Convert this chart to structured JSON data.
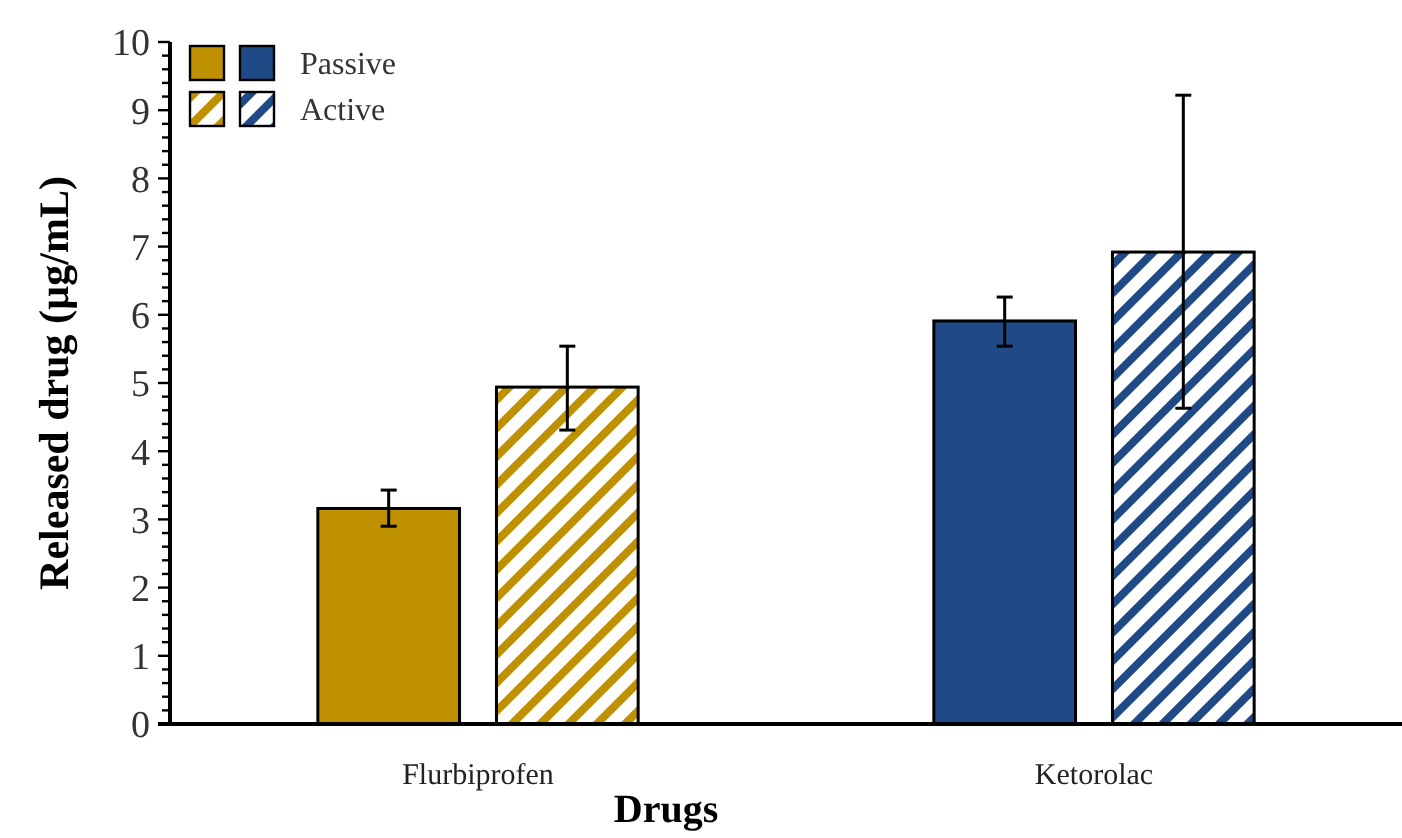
{
  "chart_data": {
    "type": "bar",
    "xlabel": "Drugs",
    "ylabel": "Released drug (µg/mL)",
    "categories": [
      "Flurbiprofen",
      "Ketorolac"
    ],
    "series": [
      {
        "name": "Passive",
        "colors": [
          "#bf9000",
          "#1f4a86"
        ],
        "values": [
          3.16,
          5.91
        ],
        "errors": [
          [
            2.9,
            3.43
          ],
          [
            5.54,
            6.26
          ]
        ]
      },
      {
        "name": "Active",
        "colors": [
          "#bf9000",
          "#1f4a86"
        ],
        "values": [
          4.94,
          6.92
        ],
        "errors": [
          [
            4.31,
            5.54
          ],
          [
            4.63,
            9.22
          ]
        ]
      }
    ],
    "ylim": [
      0,
      10
    ],
    "yticks": [
      0,
      {
        "value": 0.2,
        "label": null
      },
      {
        "value": 0.4,
        "label": null
      },
      {
        "value": 0.6,
        "label": null
      },
      {
        "value": 0.8,
        "label": null
      },
      1,
      {
        "value": 1.2,
        "label": null
      },
      {
        "value": 1.4,
        "label": null
      },
      {
        "value": 1.6,
        "label": null
      },
      {
        "value": 1.8,
        "label": null
      },
      2,
      {
        "value": 2.2,
        "label": null
      },
      {
        "value": 2.4,
        "label": null
      },
      {
        "value": 2.6,
        "label": null
      },
      {
        "value": 2.8,
        "label": null
      },
      3,
      {
        "value": 3.2,
        "label": null
      },
      {
        "value": 3.4,
        "label": null
      },
      {
        "value": 3.6,
        "label": null
      },
      {
        "value": 3.8,
        "label": null
      },
      4,
      {
        "value": 4.2,
        "label": null
      },
      {
        "value": 4.4,
        "label": null
      },
      {
        "value": 4.6,
        "label": null
      },
      {
        "value": 4.8,
        "label": null
      },
      5,
      {
        "value": 5.2,
        "label": null
      },
      {
        "value": 5.4,
        "label": null
      },
      {
        "value": 5.6,
        "label": null
      },
      {
        "value": 5.8,
        "label": null
      },
      6,
      {
        "value": 6.2,
        "label": null
      },
      {
        "value": 6.4,
        "label": null
      },
      {
        "value": 6.6,
        "label": null
      },
      {
        "value": 6.8,
        "label": null
      },
      7,
      {
        "value": 7.2,
        "label": null
      },
      {
        "value": 7.4,
        "label": null
      },
      {
        "value": 7.6,
        "label": null
      },
      {
        "value": 7.8,
        "label": null
      },
      8,
      {
        "value": 8.2,
        "label": null
      },
      {
        "value": 8.4,
        "label": null
      },
      {
        "value": 8.6,
        "label": null
      },
      {
        "value": 8.8,
        "label": null
      },
      9,
      {
        "value": 9.2,
        "label": null
      },
      {
        "value": 9.4,
        "label": null
      },
      {
        "value": 9.6,
        "label": null
      },
      {
        "value": 9.8,
        "label": null
      },
      10
    ],
    "legend": "top left",
    "grid": false
  }
}
